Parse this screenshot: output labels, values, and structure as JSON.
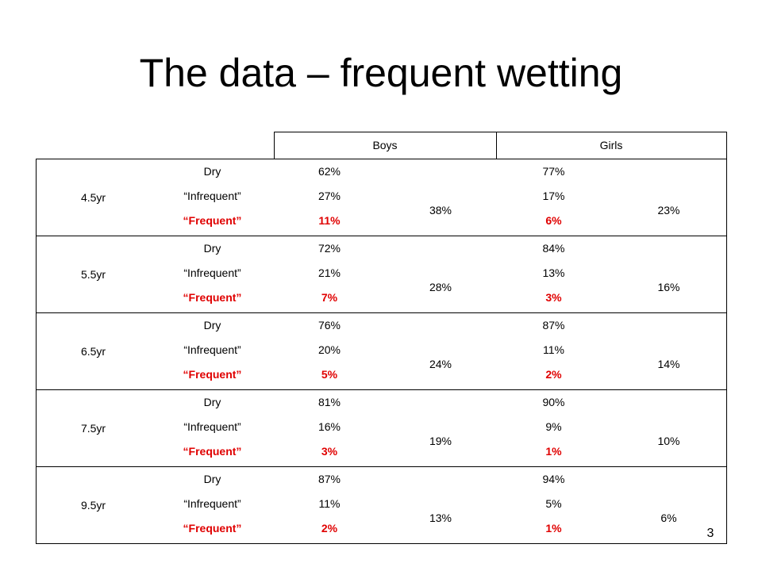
{
  "title": "The data – frequent wetting",
  "page_number": "3",
  "colors": {
    "frequent": "#e00000",
    "text": "#000000",
    "border": "#000000"
  },
  "table": {
    "headers": {
      "boys": "Boys",
      "girls": "Girls"
    },
    "groups": [
      {
        "age": "4.5yr",
        "rows": [
          {
            "category": "Dry",
            "boys": "62%",
            "girls": "77%",
            "highlight": false
          },
          {
            "category": "“Infrequent”",
            "boys": "27%",
            "girls": "17%",
            "highlight": false
          },
          {
            "category": "“Frequent”",
            "boys": "11%",
            "girls": "6%",
            "highlight": true
          }
        ],
        "boys_total": "38%",
        "girls_total": "23%"
      },
      {
        "age": "5.5yr",
        "rows": [
          {
            "category": "Dry",
            "boys": "72%",
            "girls": "84%",
            "highlight": false
          },
          {
            "category": "“Infrequent”",
            "boys": "21%",
            "girls": "13%",
            "highlight": false
          },
          {
            "category": "“Frequent”",
            "boys": "7%",
            "girls": "3%",
            "highlight": true
          }
        ],
        "boys_total": "28%",
        "girls_total": "16%"
      },
      {
        "age": "6.5yr",
        "rows": [
          {
            "category": "Dry",
            "boys": "76%",
            "girls": "87%",
            "highlight": false
          },
          {
            "category": "“Infrequent”",
            "boys": "20%",
            "girls": "11%",
            "highlight": false
          },
          {
            "category": "“Frequent”",
            "boys": "5%",
            "girls": "2%",
            "highlight": true
          }
        ],
        "boys_total": "24%",
        "girls_total": "14%"
      },
      {
        "age": "7.5yr",
        "rows": [
          {
            "category": "Dry",
            "boys": "81%",
            "girls": "90%",
            "highlight": false
          },
          {
            "category": "“Infrequent”",
            "boys": "16%",
            "girls": "9%",
            "highlight": false
          },
          {
            "category": "“Frequent”",
            "boys": "3%",
            "girls": "1%",
            "highlight": true
          }
        ],
        "boys_total": "19%",
        "girls_total": "10%"
      },
      {
        "age": "9.5yr",
        "rows": [
          {
            "category": "Dry",
            "boys": "87%",
            "girls": "94%",
            "highlight": false
          },
          {
            "category": "“Infrequent”",
            "boys": "11%",
            "girls": "5%",
            "highlight": false
          },
          {
            "category": "“Frequent”",
            "boys": "2%",
            "girls": "1%",
            "highlight": true
          }
        ],
        "boys_total": "13%",
        "girls_total": "6%"
      }
    ]
  }
}
